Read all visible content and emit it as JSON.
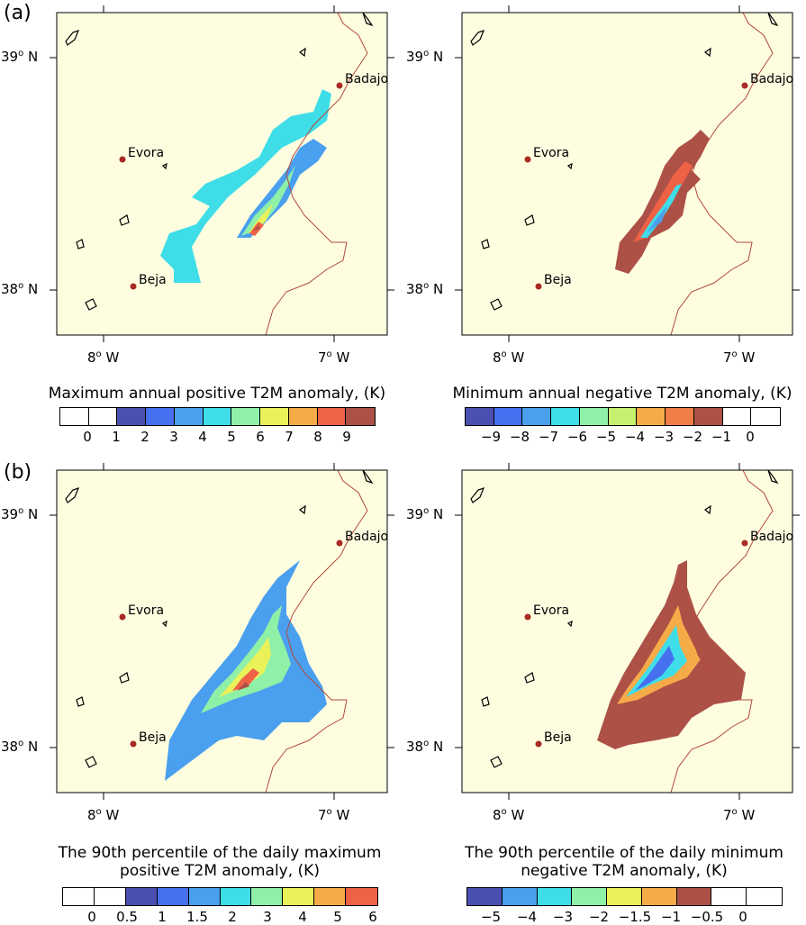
{
  "panel_labels": [
    "(a)",
    "(b)"
  ],
  "axes": {
    "lat_ticks": [
      {
        "deg": "39",
        "unit": "o",
        "hem": " N"
      },
      {
        "deg": "38",
        "unit": "o",
        "hem": " N"
      }
    ],
    "lon_ticks": [
      {
        "deg": "8",
        "unit": "o",
        "hem": " W"
      },
      {
        "deg": "7",
        "unit": "o",
        "hem": " W"
      }
    ]
  },
  "cities": [
    "Badajoz",
    "Evora",
    "Beja"
  ],
  "colors": {
    "background": "#fefde0",
    "border": "#b24a3c",
    "city": "#a82b24",
    "scale": [
      "#4b4fb0",
      "#4670f0",
      "#4aa0ee",
      "#3fdde8",
      "#8ff0a8",
      "#eaf25a",
      "#f6ab49",
      "#ee6246",
      "#ad5147"
    ]
  },
  "panels": [
    {
      "id": "a-left",
      "colorbar": {
        "title_lines": [
          "Maximum annual positive T2M anomaly, (K)"
        ],
        "labels": [
          "0",
          "1",
          "2",
          "3",
          "4",
          "5",
          "6",
          "7",
          "8",
          "9"
        ],
        "swatches": [
          "#ffffff",
          "#ffffff",
          "#4b4fb0",
          "#4670f0",
          "#4aa0ee",
          "#3fdde8",
          "#8ff0a8",
          "#eaf25a",
          "#f6ab49",
          "#ee6246",
          "#ad5147"
        ]
      }
    },
    {
      "id": "a-right",
      "colorbar": {
        "title_lines": [
          "Minimum annual negative T2M anomaly, (K)"
        ],
        "labels": [
          "−9",
          "−8",
          "−7",
          "−6",
          "−5",
          "−4",
          "−3",
          "−2",
          "−1",
          "0"
        ],
        "swatches": [
          "#4b4fb0",
          "#4670f0",
          "#4aa0ee",
          "#3fdde8",
          "#8ff0a8",
          "#c8f070",
          "#f6ab49",
          "#f07e48",
          "#ad5147",
          "#ffffff",
          "#ffffff"
        ]
      }
    },
    {
      "id": "b-left",
      "colorbar": {
        "title_lines": [
          "The 90th percentile of the daily maximum",
          "positive T2M anomaly, (K)"
        ],
        "labels": [
          "0",
          "0.5",
          "1",
          "1.5",
          "2",
          "3",
          "4",
          "5",
          "6"
        ],
        "swatches": [
          "#ffffff",
          "#ffffff",
          "#4b4fb0",
          "#4670f0",
          "#4aa0ee",
          "#3fdde8",
          "#8ff0a8",
          "#eaf25a",
          "#f6ab49",
          "#ee6246"
        ]
      }
    },
    {
      "id": "b-right",
      "colorbar": {
        "title_lines": [
          "The 90th percentile of the daily minimum",
          "negative T2M anomaly, (K)"
        ],
        "labels": [
          "−5",
          "−4",
          "−3",
          "−2",
          "−1.5",
          "−1",
          "−0.5",
          "0"
        ],
        "swatches": [
          "#4b4fb0",
          "#4aa0ee",
          "#3fdde8",
          "#8ff0a8",
          "#eaf25a",
          "#f6ab49",
          "#ad5147",
          "#ffffff",
          "#ffffff"
        ]
      }
    }
  ]
}
